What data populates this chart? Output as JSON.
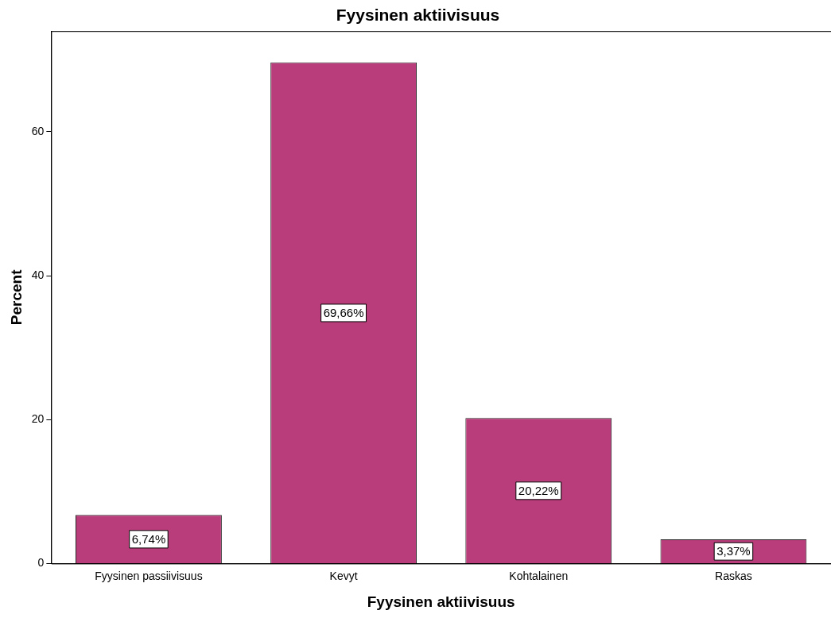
{
  "chart_data": {
    "type": "bar",
    "title": "Fyysinen aktiivisuus",
    "xlabel": "Fyysinen aktiivisuus",
    "ylabel": "Percent",
    "categories": [
      "Fyysinen passiivisuus",
      "Kevyt",
      "Kohtalainen",
      "Raskas"
    ],
    "values": [
      6.74,
      69.66,
      20.22,
      3.37
    ],
    "value_labels": [
      "6,74%",
      "69,66%",
      "20,22%",
      "3,37%"
    ],
    "color": "#b93d7a",
    "ylim": [
      0,
      74
    ],
    "yticks": [
      0,
      20,
      40,
      60
    ],
    "grid": false,
    "legend": false
  }
}
